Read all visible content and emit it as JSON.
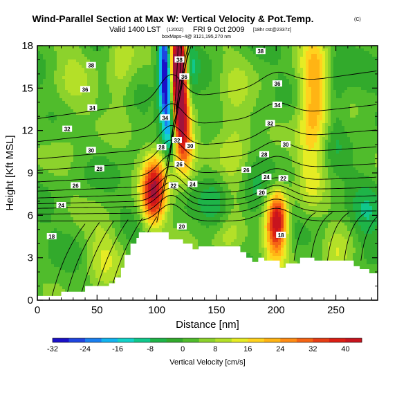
{
  "header": {
    "title": "Wind-Parallel Section at Max W: Vertical Velocity & Pot.Temp.",
    "title_mark": "(C)",
    "valid_line": "Valid 1400 LST",
    "valid_line_small": "(1200Z)",
    "valid_line_rest": "FRI 9 Oct 2009",
    "run_note": "[18hr cst@2337z]",
    "note_line": "boxMaps~4@ 3121,195,270 nm"
  },
  "colors": {
    "terrain": "#ffffff",
    "contour": "#000000",
    "frame": "#000000"
  },
  "chart_data": {
    "type": "heatmap",
    "xlabel": "Distance [nm]",
    "ylabel": "Height [Kft MSL]",
    "xlim": [
      0,
      285
    ],
    "ylim": [
      0,
      18
    ],
    "xticks": [
      0,
      50,
      100,
      150,
      200,
      250
    ],
    "yticks": [
      0,
      3,
      6,
      9,
      12,
      15,
      18
    ],
    "grid": false,
    "field": "Vertical Velocity",
    "overlay": "Potential Temperature contours",
    "colorbar": {
      "label": "Vertical Velocity [cm/s]",
      "min": -32,
      "max": 44,
      "ticks": [
        -32,
        -24,
        -16,
        -8,
        0,
        8,
        16,
        24,
        32,
        40
      ],
      "stops": [
        {
          "v": -32,
          "c": "#1a10c8"
        },
        {
          "v": -28,
          "c": "#1f45e0"
        },
        {
          "v": -24,
          "c": "#1a7ff0"
        },
        {
          "v": -20,
          "c": "#12b4f0"
        },
        {
          "v": -16,
          "c": "#12d2c8"
        },
        {
          "v": -12,
          "c": "#10c88c"
        },
        {
          "v": -8,
          "c": "#1eb448"
        },
        {
          "v": -4,
          "c": "#32aa2c"
        },
        {
          "v": 0,
          "c": "#50bc2c"
        },
        {
          "v": 4,
          "c": "#8cd22c"
        },
        {
          "v": 8,
          "c": "#b4e028"
        },
        {
          "v": 12,
          "c": "#e6ec24"
        },
        {
          "v": 16,
          "c": "#ffd21e"
        },
        {
          "v": 20,
          "c": "#ffb414"
        },
        {
          "v": 24,
          "c": "#ff8c14"
        },
        {
          "v": 28,
          "c": "#f56414"
        },
        {
          "v": 32,
          "c": "#e63c14"
        },
        {
          "v": 36,
          "c": "#dc1e14"
        },
        {
          "v": 40,
          "c": "#c8141e"
        },
        {
          "v": 44,
          "c": "#a0143c"
        }
      ]
    },
    "vertical_velocity_features": [
      {
        "x": 117,
        "y": 17.0,
        "value": 42,
        "sx": 5,
        "sy": 1.8
      },
      {
        "x": 119,
        "y": 15.0,
        "value": 34,
        "sx": 5,
        "sy": 2.5
      },
      {
        "x": 121,
        "y": 12.5,
        "value": 24,
        "sx": 6,
        "sy": 2.0
      },
      {
        "x": 124,
        "y": 10.5,
        "value": 16,
        "sx": 6,
        "sy": 1.5
      },
      {
        "x": 107,
        "y": 17.0,
        "value": -30,
        "sx": 4,
        "sy": 2.5
      },
      {
        "x": 109,
        "y": 14.5,
        "value": -22,
        "sx": 4,
        "sy": 2.0
      },
      {
        "x": 112,
        "y": 12.0,
        "value": -16,
        "sx": 4,
        "sy": 1.5
      },
      {
        "x": 128,
        "y": 16.0,
        "value": -12,
        "sx": 4,
        "sy": 2.5
      },
      {
        "x": 97,
        "y": 7.3,
        "value": 34,
        "sx": 7,
        "sy": 1.6
      },
      {
        "x": 100,
        "y": 9.0,
        "value": 14,
        "sx": 8,
        "sy": 1.5
      },
      {
        "x": 201,
        "y": 5.8,
        "value": 36,
        "sx": 6,
        "sy": 1.4
      },
      {
        "x": 199,
        "y": 4.0,
        "value": 14,
        "sx": 7,
        "sy": 1.5
      },
      {
        "x": 232,
        "y": 15.0,
        "value": 20,
        "sx": 9,
        "sy": 3.0
      },
      {
        "x": 229,
        "y": 10.0,
        "value": 10,
        "sx": 8,
        "sy": 3.0
      },
      {
        "x": 250,
        "y": 14.5,
        "value": -6,
        "sx": 6,
        "sy": 3.0
      },
      {
        "x": 165,
        "y": 12.0,
        "value": 10,
        "sx": 10,
        "sy": 3.5
      },
      {
        "x": 150,
        "y": 7.0,
        "value": -7,
        "sx": 8,
        "sy": 1.4
      },
      {
        "x": 180,
        "y": 7.0,
        "value": -7,
        "sx": 8,
        "sy": 1.4
      },
      {
        "x": 275,
        "y": 5.5,
        "value": -7,
        "sx": 8,
        "sy": 2.0
      },
      {
        "x": 160,
        "y": 4.3,
        "value": 10,
        "sx": 10,
        "sy": 1.0
      },
      {
        "x": 55,
        "y": 3.0,
        "value": 10,
        "sx": 10,
        "sy": 2.0
      },
      {
        "x": 30,
        "y": 15.0,
        "value": 6,
        "sx": 12,
        "sy": 4.0
      },
      {
        "x": 70,
        "y": 16.5,
        "value": 10,
        "sx": 8,
        "sy": 2.5
      },
      {
        "x": 250,
        "y": 3.0,
        "value": 10,
        "sx": 8,
        "sy": 1.5
      }
    ],
    "terrain_profile": {
      "x": [
        0,
        20,
        20,
        40,
        40,
        60,
        60,
        65,
        65,
        70,
        70,
        73,
        73,
        78,
        78,
        83,
        83,
        85,
        85,
        110,
        110,
        122,
        122,
        130,
        130,
        135,
        135,
        170,
        170,
        175,
        175,
        180,
        180,
        185,
        185,
        190,
        190,
        203,
        203,
        208,
        208,
        220,
        220,
        232,
        232,
        240,
        240,
        265,
        265,
        270,
        270,
        278,
        278,
        285
      ],
      "y": [
        0.3,
        0.3,
        0.6,
        0.6,
        1.0,
        1.0,
        1.2,
        1.2,
        1.6,
        1.6,
        2.3,
        2.3,
        3.2,
        3.2,
        4.0,
        4.0,
        4.4,
        4.4,
        4.8,
        4.8,
        4.3,
        4.3,
        4.0,
        4.0,
        3.6,
        3.6,
        3.8,
        3.8,
        3.4,
        3.4,
        3.0,
        3.0,
        2.7,
        2.7,
        3.0,
        3.0,
        2.8,
        2.8,
        2.3,
        2.3,
        2.6,
        2.6,
        3.0,
        3.0,
        2.8,
        2.8,
        2.8,
        2.8,
        2.4,
        2.4,
        2.2,
        2.2,
        1.9,
        1.9
      ]
    },
    "theta_levels": [
      {
        "theta": 318,
        "base": 5.6,
        "label": "18",
        "label_x": 12
      },
      {
        "theta": 320,
        "base": 6.2,
        "label": "20",
        "label_x": 122
      },
      {
        "theta": 322,
        "base": 6.7,
        "label": "22",
        "label_x": 210
      },
      {
        "theta": 324,
        "base": 7.1,
        "label": "24",
        "label_x": 20
      },
      {
        "theta": 326,
        "base": 7.6,
        "label": "26",
        "label_x": 32
      },
      {
        "theta": 328,
        "base": 8.2,
        "label": "28",
        "label_x": 52
      },
      {
        "theta": 330,
        "base": 9.0,
        "label": "30",
        "label_x": 45
      },
      {
        "theta": 332,
        "base": 10.0,
        "label": "32",
        "label_x": 25
      },
      {
        "theta": 334,
        "base": 11.0,
        "label": "34",
        "label_x": 47
      },
      {
        "theta": 336,
        "base": 12.5,
        "label": "36",
        "label_x": 40
      },
      {
        "theta": 338,
        "base": 14.5,
        "label": "38",
        "label_x": 47
      }
    ],
    "contour_labels": [
      {
        "x": 45,
        "y": 16.6,
        "text": "38"
      },
      {
        "x": 40,
        "y": 14.9,
        "text": "36"
      },
      {
        "x": 46,
        "y": 13.6,
        "text": "34"
      },
      {
        "x": 25,
        "y": 12.1,
        "text": "32"
      },
      {
        "x": 45,
        "y": 10.6,
        "text": "30"
      },
      {
        "x": 52,
        "y": 9.3,
        "text": "28"
      },
      {
        "x": 32,
        "y": 8.1,
        "text": "26"
      },
      {
        "x": 20,
        "y": 6.7,
        "text": "24"
      },
      {
        "x": 12,
        "y": 4.5,
        "text": "18"
      },
      {
        "x": 119,
        "y": 17.0,
        "text": "38"
      },
      {
        "x": 123,
        "y": 15.8,
        "text": "36"
      },
      {
        "x": 107,
        "y": 12.9,
        "text": "34"
      },
      {
        "x": 117,
        "y": 11.3,
        "text": "32"
      },
      {
        "x": 104,
        "y": 10.8,
        "text": "28"
      },
      {
        "x": 128,
        "y": 10.9,
        "text": "30"
      },
      {
        "x": 119,
        "y": 9.6,
        "text": "26"
      },
      {
        "x": 114,
        "y": 8.1,
        "text": "22"
      },
      {
        "x": 130,
        "y": 8.2,
        "text": "24"
      },
      {
        "x": 121,
        "y": 5.2,
        "text": "20"
      },
      {
        "x": 187,
        "y": 17.6,
        "text": "38"
      },
      {
        "x": 201,
        "y": 15.3,
        "text": "36"
      },
      {
        "x": 201,
        "y": 13.8,
        "text": "34"
      },
      {
        "x": 195,
        "y": 12.5,
        "text": "32"
      },
      {
        "x": 208,
        "y": 11.0,
        "text": "30"
      },
      {
        "x": 190,
        "y": 10.3,
        "text": "28"
      },
      {
        "x": 175,
        "y": 9.2,
        "text": "26"
      },
      {
        "x": 192,
        "y": 8.7,
        "text": "24"
      },
      {
        "x": 206,
        "y": 8.6,
        "text": "22"
      },
      {
        "x": 188,
        "y": 7.6,
        "text": "20"
      },
      {
        "x": 204,
        "y": 4.6,
        "text": "18"
      }
    ]
  }
}
